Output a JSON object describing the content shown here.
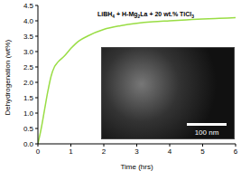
{
  "chart_data": {
    "type": "line",
    "xlabel": "Time (hrs)",
    "ylabel": "Dehydrogenation (wt%)",
    "annotations": [
      "LiBH4 + H-Mg2La + 20 wt.% TiCl3",
      "100 nm"
    ],
    "x": [
      0,
      0.1,
      0.2,
      0.3,
      0.4,
      0.5,
      0.6,
      0.8,
      1,
      1.25,
      1.5,
      2,
      2.5,
      3,
      3.5,
      4,
      4.5,
      5,
      5.5,
      6
    ],
    "values": [
      0,
      0.5,
      1.1,
      1.7,
      2.2,
      2.5,
      2.65,
      2.85,
      3.1,
      3.35,
      3.5,
      3.72,
      3.84,
      3.92,
      3.97,
      4.0,
      4.03,
      4.06,
      4.08,
      4.1
    ],
    "color": "#99dd44",
    "marker": "none",
    "xlim": [
      0,
      6
    ],
    "xticks": [
      0,
      1,
      2,
      3,
      4,
      5,
      6
    ],
    "ylim": [
      0,
      4.5
    ],
    "yticks": [
      {
        "value": 0,
        "label": "0.0"
      },
      0.5,
      {
        "value": 1,
        "label": "1.0"
      },
      1.5,
      {
        "value": 2,
        "label": "2.0"
      },
      2.5,
      {
        "value": 3,
        "label": "3.0"
      },
      3.5,
      {
        "value": 4,
        "label": "4.0"
      },
      4.5
    ],
    "tick_labels": true
  }
}
